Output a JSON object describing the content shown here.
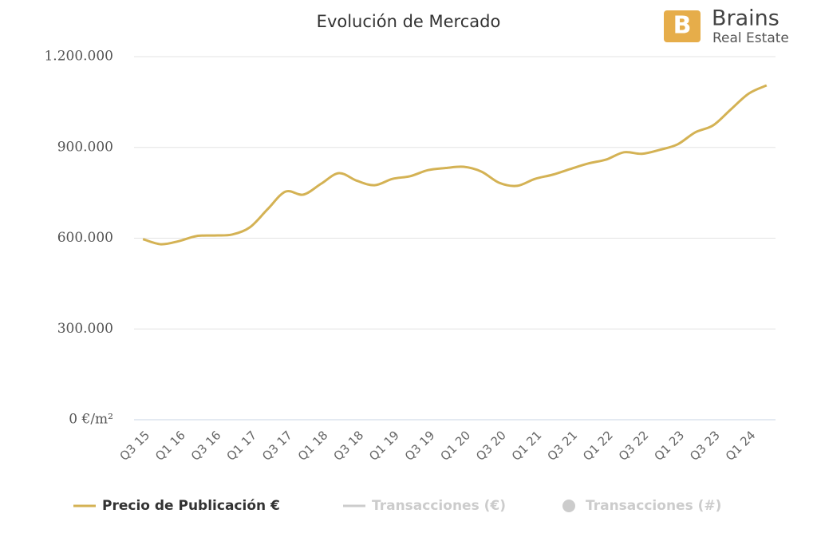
{
  "logo": {
    "name": "Brains",
    "subtitle": "Real Estate"
  },
  "chart_data": {
    "type": "line",
    "title": "Evolución de Mercado",
    "categories": [
      "Q3 15",
      null,
      "Q1 16",
      null,
      "Q3 16",
      null,
      "Q1 17",
      null,
      "Q3 17",
      null,
      "Q1 18",
      null,
      "Q3 18",
      null,
      "Q1 19",
      null,
      "Q3 19",
      null,
      "Q1 20",
      null,
      "Q3 20",
      null,
      "Q1 21",
      null,
      "Q3 21",
      null,
      "Q1 22",
      null,
      "Q3 22",
      null,
      "Q1 23",
      null,
      "Q3 23",
      null,
      "Q1 24",
      null
    ],
    "series": [
      {
        "name": "Precio de Publicación €",
        "color": "#d4b254",
        "values": [
          597000,
          580000,
          590000,
          607000,
          609000,
          612000,
          636000,
          696000,
          754000,
          744000,
          780000,
          815000,
          790000,
          775000,
          796000,
          805000,
          825000,
          832000,
          836000,
          820000,
          783000,
          773000,
          796000,
          810000,
          829000,
          847000,
          860000,
          884000,
          879000,
          892000,
          910000,
          950000,
          973000,
          1026000,
          1078000,
          1105000
        ]
      }
    ],
    "legend": [
      {
        "name": "Precio de Publicación €",
        "color": "#d4b254",
        "symbol": "line"
      },
      {
        "name": "Transacciones (€)",
        "color": "#cccccc",
        "symbol": "line"
      },
      {
        "name": "Transacciones (#)",
        "color": "#cccccc",
        "symbol": "circle"
      }
    ],
    "ylim": [
      0,
      1200000
    ],
    "yticks": [
      {
        "value": 0,
        "label": "0 €/m²"
      },
      {
        "value": 300000,
        "label": "300.000"
      },
      {
        "value": 600000,
        "label": "600.000"
      },
      {
        "value": 900000,
        "label": "900.000"
      },
      {
        "value": 1200000,
        "label": "1.200.000"
      }
    ],
    "grid": true
  }
}
